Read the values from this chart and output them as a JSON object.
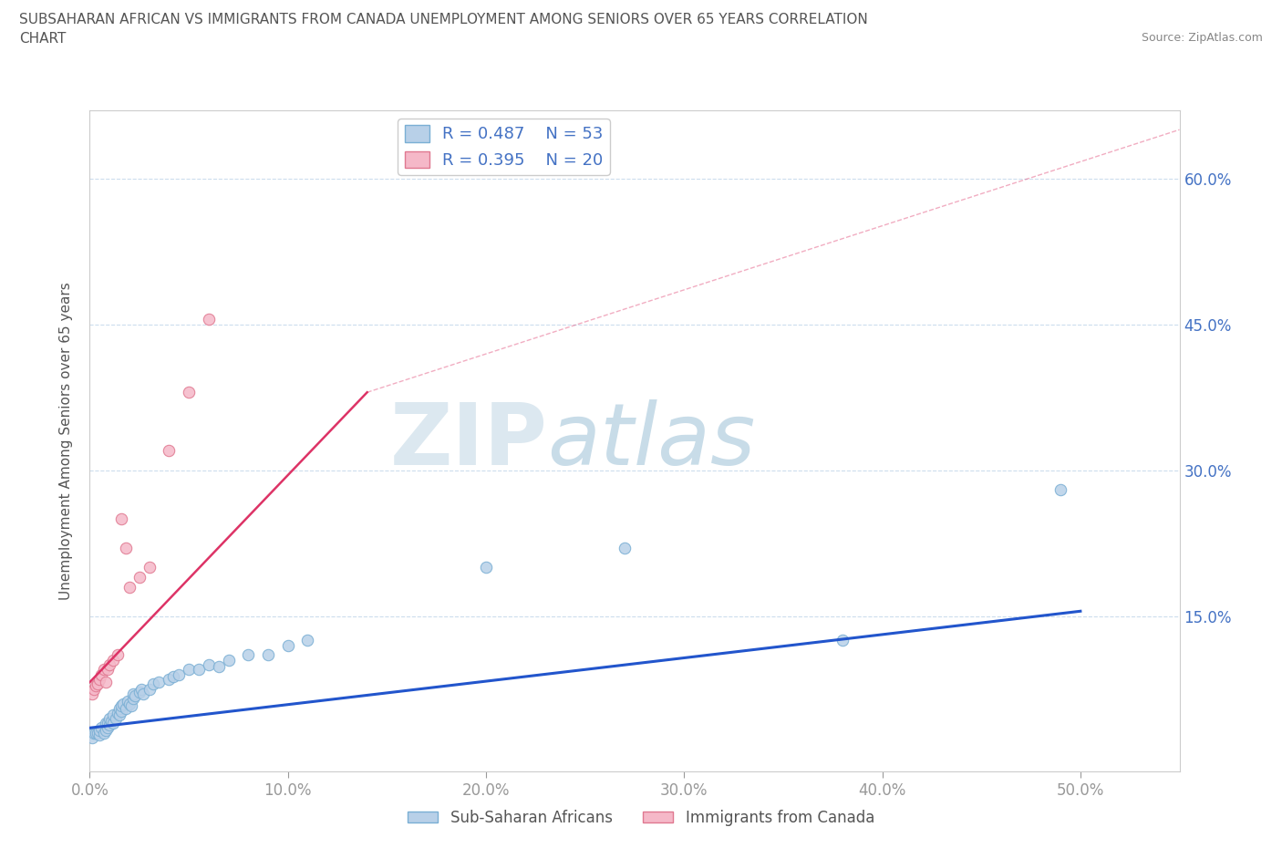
{
  "title_line1": "SUBSAHARAN AFRICAN VS IMMIGRANTS FROM CANADA UNEMPLOYMENT AMONG SENIORS OVER 65 YEARS CORRELATION",
  "title_line2": "CHART",
  "source": "Source: ZipAtlas.com",
  "ylabel": "Unemployment Among Seniors over 65 years",
  "xlim": [
    0.0,
    0.55
  ],
  "ylim": [
    -0.01,
    0.67
  ],
  "xticks": [
    0.0,
    0.1,
    0.2,
    0.3,
    0.4,
    0.5
  ],
  "xtick_labels": [
    "0.0%",
    "10.0%",
    "20.0%",
    "30.0%",
    "40.0%",
    "50.0%"
  ],
  "ytick_labels": [
    "15.0%",
    "30.0%",
    "45.0%",
    "60.0%"
  ],
  "ytick_values": [
    0.15,
    0.3,
    0.45,
    0.6
  ],
  "watermark_zip": "ZIP",
  "watermark_atlas": "atlas",
  "legend_r1": "R = 0.487",
  "legend_n1": "N = 53",
  "legend_r2": "R = 0.395",
  "legend_n2": "N = 20",
  "series1_color": "#b8d0e8",
  "series1_edge": "#7aafd4",
  "series2_color": "#f5b8c8",
  "series2_edge": "#e07890",
  "trendline1_color": "#2255cc",
  "trendline2_color": "#dd3366",
  "background_color": "#ffffff",
  "grid_color": "#ccdded",
  "title_color": "#555555",
  "axis_label_color": "#4472c4",
  "label_series1": "Sub-Saharan Africans",
  "label_series2": "Immigrants from Canada",
  "blue_x": [
    0.001,
    0.002,
    0.003,
    0.004,
    0.005,
    0.005,
    0.006,
    0.007,
    0.008,
    0.008,
    0.009,
    0.009,
    0.01,
    0.01,
    0.011,
    0.012,
    0.012,
    0.013,
    0.014,
    0.015,
    0.015,
    0.016,
    0.016,
    0.017,
    0.018,
    0.019,
    0.02,
    0.021,
    0.022,
    0.022,
    0.023,
    0.025,
    0.026,
    0.027,
    0.03,
    0.032,
    0.035,
    0.04,
    0.042,
    0.045,
    0.05,
    0.055,
    0.06,
    0.065,
    0.07,
    0.08,
    0.09,
    0.1,
    0.11,
    0.2,
    0.27,
    0.38,
    0.49
  ],
  "blue_y": [
    0.025,
    0.03,
    0.03,
    0.03,
    0.028,
    0.032,
    0.035,
    0.03,
    0.032,
    0.04,
    0.035,
    0.04,
    0.038,
    0.045,
    0.042,
    0.04,
    0.048,
    0.045,
    0.05,
    0.048,
    0.055,
    0.052,
    0.058,
    0.06,
    0.055,
    0.062,
    0.06,
    0.058,
    0.065,
    0.07,
    0.068,
    0.072,
    0.075,
    0.07,
    0.075,
    0.08,
    0.082,
    0.085,
    0.088,
    0.09,
    0.095,
    0.095,
    0.1,
    0.098,
    0.105,
    0.11,
    0.11,
    0.12,
    0.125,
    0.2,
    0.22,
    0.125,
    0.28
  ],
  "pink_x": [
    0.001,
    0.002,
    0.003,
    0.004,
    0.005,
    0.006,
    0.007,
    0.008,
    0.009,
    0.01,
    0.012,
    0.014,
    0.016,
    0.018,
    0.02,
    0.025,
    0.03,
    0.04,
    0.05,
    0.06
  ],
  "pink_y": [
    0.07,
    0.075,
    0.078,
    0.08,
    0.085,
    0.09,
    0.095,
    0.082,
    0.095,
    0.1,
    0.105,
    0.11,
    0.25,
    0.22,
    0.18,
    0.19,
    0.2,
    0.32,
    0.38,
    0.455
  ],
  "trendline1_x": [
    0.0,
    0.5
  ],
  "trendline1_y": [
    0.035,
    0.155
  ],
  "trendline2_x": [
    0.0,
    0.14
  ],
  "trendline2_y": [
    0.082,
    0.38
  ]
}
